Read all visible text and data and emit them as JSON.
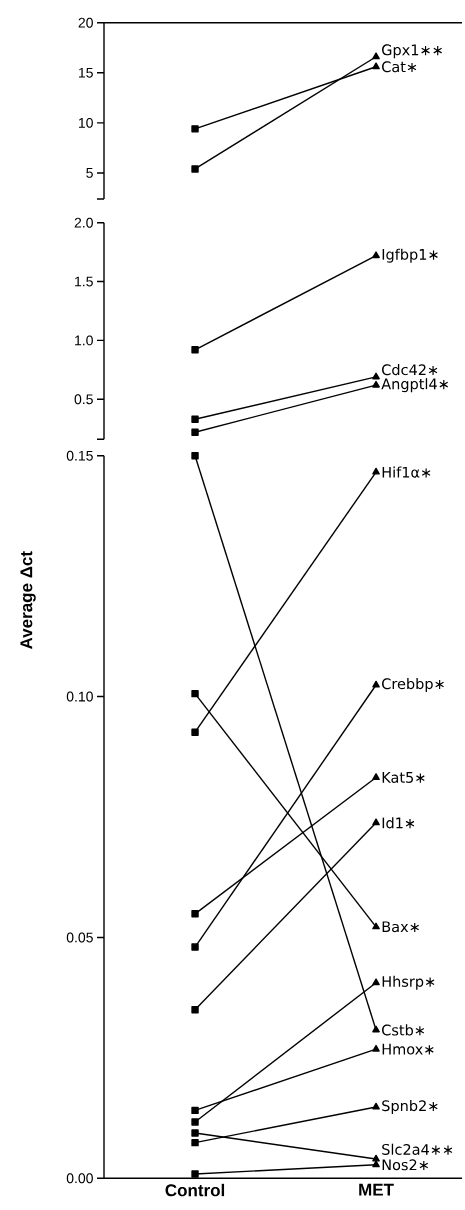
{
  "chart_data": [
    {
      "type": "line",
      "categories": [
        null,
        null
      ],
      "ylim": [
        2.4,
        20
      ],
      "yticks": [
        {
          "value": 2.4,
          "label": null
        },
        5,
        10,
        15,
        20
      ],
      "tick_labels": "y",
      "marker": "square",
      "series": [
        {
          "name": "Gpx1∗∗",
          "color": "#000000",
          "values": [
            5.4,
            16.6
          ]
        },
        {
          "name": "Cat∗",
          "color": "#000000",
          "values": [
            9.4,
            15.6
          ]
        }
      ]
    },
    {
      "type": "line",
      "categories": [
        null,
        null
      ],
      "ylim": [
        0.16,
        2.0
      ],
      "yticks": [
        {
          "value": 0.16,
          "label": null
        },
        0.5,
        {
          "value": 1.0,
          "label": "1.0"
        },
        1.5,
        {
          "value": 2.0,
          "label": "2.0"
        }
      ],
      "tick_labels": "y",
      "marker": "square",
      "series": [
        {
          "name": "Igfbp1∗",
          "color": "#000000",
          "values": [
            0.92,
            1.72
          ]
        },
        {
          "name": "Cdc42∗",
          "color": "#000000",
          "values": [
            0.33,
            0.69
          ]
        },
        {
          "name": "Angptl4∗",
          "color": "#000000",
          "values": [
            0.22,
            0.62
          ]
        }
      ]
    },
    {
      "type": "line",
      "categories": [
        "Control",
        "MET"
      ],
      "ylabel": "Average Δct",
      "ylim": [
        0,
        0.15
      ],
      "yticks": [
        {
          "value": 0,
          "label": "0.00"
        },
        0.05,
        {
          "value": 0.1,
          "label": "0.10"
        },
        0.15
      ],
      "marker": "square",
      "series": [
        {
          "name": "Hif1α∗",
          "color": "#000000",
          "values": [
            0.0926,
            0.1466
          ]
        },
        {
          "name": "Crebbp∗",
          "color": "#000000",
          "values": [
            0.048,
            0.1024
          ]
        },
        {
          "name": "Kat5∗",
          "color": "#000000",
          "values": [
            0.0549,
            0.0832
          ]
        },
        {
          "name": "Id1∗",
          "color": "#000000",
          "values": [
            0.035,
            0.0738
          ]
        },
        {
          "name": "Bax∗",
          "color": "#000000",
          "values": [
            0.1006,
            0.0522
          ]
        },
        {
          "name": "Hhsrp∗",
          "color": "#000000",
          "values": [
            0.0117,
            0.0406
          ]
        },
        {
          "name": "Cstb∗",
          "color": "#000000",
          "values": [
            0.15,
            0.0308
          ]
        },
        {
          "name": "Hmox∗",
          "color": "#000000",
          "values": [
            0.0141,
            0.0268
          ]
        },
        {
          "name": "Spnb2∗",
          "color": "#000000",
          "values": [
            0.0074,
            0.0148
          ]
        },
        {
          "name": "Slc2a4∗∗",
          "color": "#000000",
          "values": [
            0.0094,
            0.004
          ]
        },
        {
          "name": "Nos2∗",
          "color": "#000000",
          "values": [
            0.0009,
            0.0028
          ]
        }
      ]
    }
  ]
}
